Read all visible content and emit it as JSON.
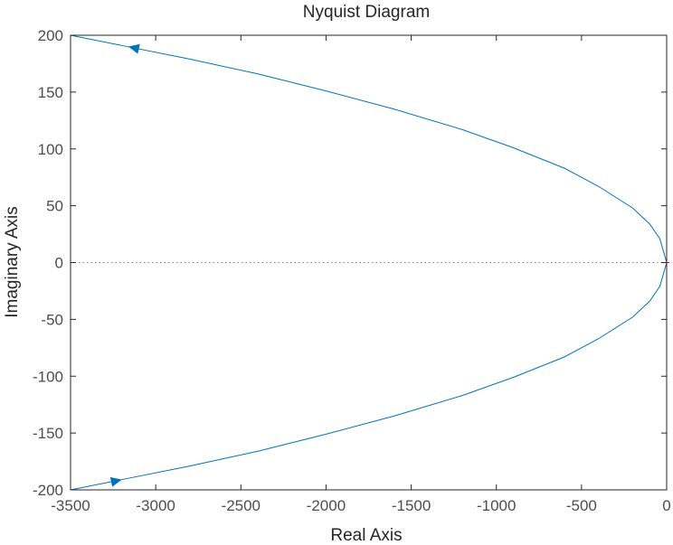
{
  "chart_data": {
    "type": "line",
    "title": "Nyquist Diagram",
    "xlabel": "Real Axis",
    "ylabel": "Imaginary Axis",
    "xlim": [
      -3500,
      0
    ],
    "ylim": [
      -200,
      200
    ],
    "xticks": [
      -3500,
      -3000,
      -2500,
      -2000,
      -1500,
      -1000,
      -500,
      0
    ],
    "yticks": [
      -200,
      -150,
      -100,
      -50,
      0,
      50,
      100,
      150,
      200
    ],
    "xtick_labels": [
      "-3500",
      "-3000",
      "-2500",
      "-2000",
      "-1500",
      "-1000",
      "-500",
      "0"
    ],
    "ytick_labels": [
      "-200",
      "-150",
      "-100",
      "-50",
      "0",
      "50",
      "100",
      "150",
      "200"
    ],
    "grid": false,
    "series": [
      {
        "color": "#0072BD",
        "x": [
          -3500,
          -3200,
          -2800,
          -2400,
          -2000,
          -1600,
          -1200,
          -900,
          -600,
          -400,
          -200,
          -100,
          -40,
          0,
          -40,
          -100,
          -200,
          -400,
          -600,
          -900,
          -1200,
          -1600,
          -2000,
          -2400,
          -2800,
          -3200,
          -3500
        ],
        "y": [
          200,
          191,
          179,
          166,
          151,
          135,
          117,
          101,
          83,
          67,
          48,
          34,
          21,
          0,
          -21,
          -34,
          -48,
          -67,
          -83,
          -101,
          -117,
          -135,
          -151,
          -166,
          -179,
          -191,
          -200
        ]
      }
    ],
    "direction_arrows": [
      {
        "x": -3130,
        "y": 189,
        "direction": "left"
      },
      {
        "x": -3230,
        "y": -192,
        "direction": "right"
      }
    ],
    "critical_point": {
      "x": 0,
      "y": 0,
      "color": "#ff0000"
    },
    "zero_line_color": "#808080"
  }
}
